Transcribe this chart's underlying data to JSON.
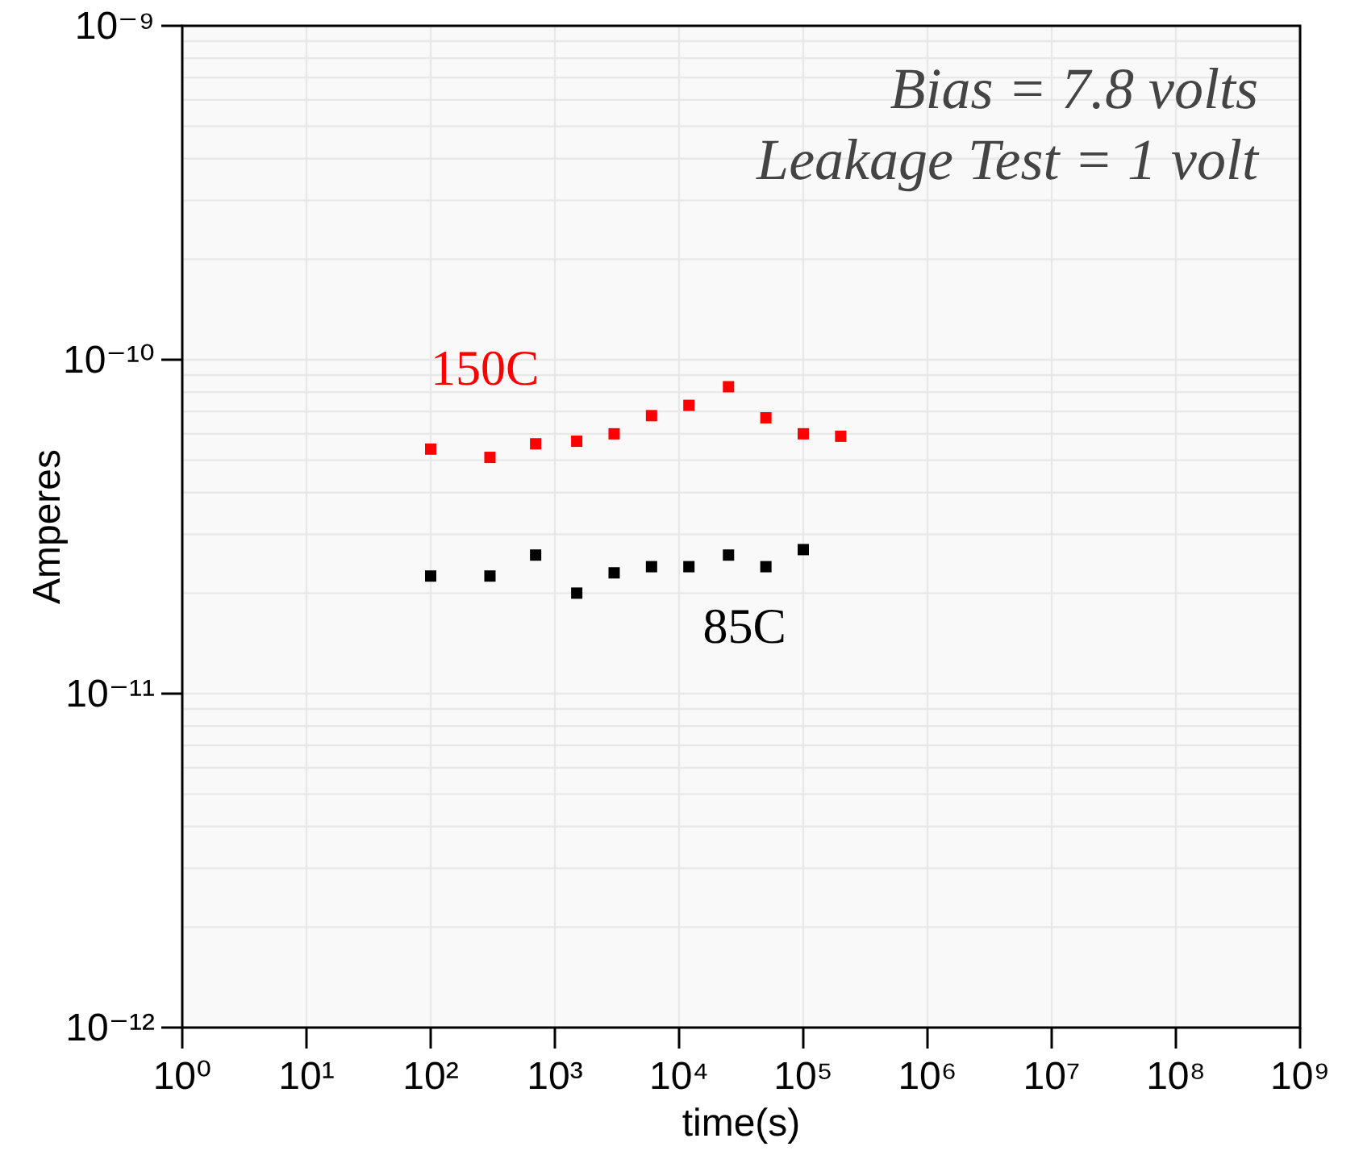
{
  "chart_data": {
    "type": "scatter",
    "xlabel": "time(s)",
    "ylabel": "Amperes",
    "log": "xy",
    "grid": true,
    "marker": "square",
    "xlim": [
      1,
      1000000000
    ],
    "ylim": [
      1e-12,
      1e-09
    ],
    "xticks": [
      {
        "value": 1,
        "label": "10⁰"
      },
      {
        "value": 10,
        "label": "10¹"
      },
      {
        "value": 100,
        "label": "10²"
      },
      {
        "value": 1000,
        "label": "10³"
      },
      {
        "value": 10000,
        "label": "10⁴"
      },
      {
        "value": 100000,
        "label": "10⁵"
      },
      {
        "value": 1000000,
        "label": "10⁶"
      },
      {
        "value": 10000000,
        "label": "10⁷"
      },
      {
        "value": 100000000,
        "label": "10⁸"
      },
      {
        "value": 1000000000,
        "label": "10⁹"
      }
    ],
    "yticks": [
      {
        "value": 1e-12,
        "label": "10⁻¹²"
      },
      {
        "value": 2e-12,
        "label": null
      },
      {
        "value": 3e-12,
        "label": null
      },
      {
        "value": 4e-12,
        "label": null
      },
      {
        "value": 5e-12,
        "label": null
      },
      {
        "value": 6e-12,
        "label": null
      },
      {
        "value": 7e-12,
        "label": null
      },
      {
        "value": 8e-12,
        "label": null
      },
      {
        "value": 9e-12,
        "label": null
      },
      {
        "value": 1e-11,
        "label": "10⁻¹¹"
      },
      {
        "value": 2e-11,
        "label": null
      },
      {
        "value": 3e-11,
        "label": null
      },
      {
        "value": 4e-11,
        "label": null
      },
      {
        "value": 5e-11,
        "label": null
      },
      {
        "value": 6e-11,
        "label": null
      },
      {
        "value": 7e-11,
        "label": null
      },
      {
        "value": 8e-11,
        "label": null
      },
      {
        "value": 9e-11,
        "label": null
      },
      {
        "value": 1e-10,
        "label": "10⁻¹⁰"
      },
      {
        "value": 2e-10,
        "label": null
      },
      {
        "value": 3e-10,
        "label": null
      },
      {
        "value": 4e-10,
        "label": null
      },
      {
        "value": 5e-10,
        "label": null
      },
      {
        "value": 6e-10,
        "label": null
      },
      {
        "value": 7e-10,
        "label": null
      },
      {
        "value": 8e-10,
        "label": null
      },
      {
        "value": 9e-10,
        "label": null
      },
      {
        "value": 1e-09,
        "label": "10⁻⁹"
      }
    ],
    "annotations": [
      "Bias = 7.8 volts",
      "Leakage Test = 1 volt"
    ],
    "series": [
      {
        "name": "150C",
        "color": "#ff0000",
        "x": [
          100,
          300,
          700,
          1500,
          3000,
          6000,
          12000,
          25000,
          50000,
          100000,
          200000
        ],
        "values": [
          5.4e-11,
          5.1e-11,
          5.6e-11,
          5.7e-11,
          6e-11,
          6.8e-11,
          7.3e-11,
          8.3e-11,
          6.7e-11,
          6e-11,
          5.9e-11
        ]
      },
      {
        "name": "85C",
        "color": "#000000",
        "x": [
          100,
          300,
          700,
          1500,
          3000,
          6000,
          12000,
          25000,
          50000,
          100000
        ],
        "values": [
          2.25e-11,
          2.25e-11,
          2.6e-11,
          2e-11,
          2.3e-11,
          2.4e-11,
          2.4e-11,
          2.6e-11,
          2.4e-11,
          2.7e-11
        ]
      }
    ]
  }
}
